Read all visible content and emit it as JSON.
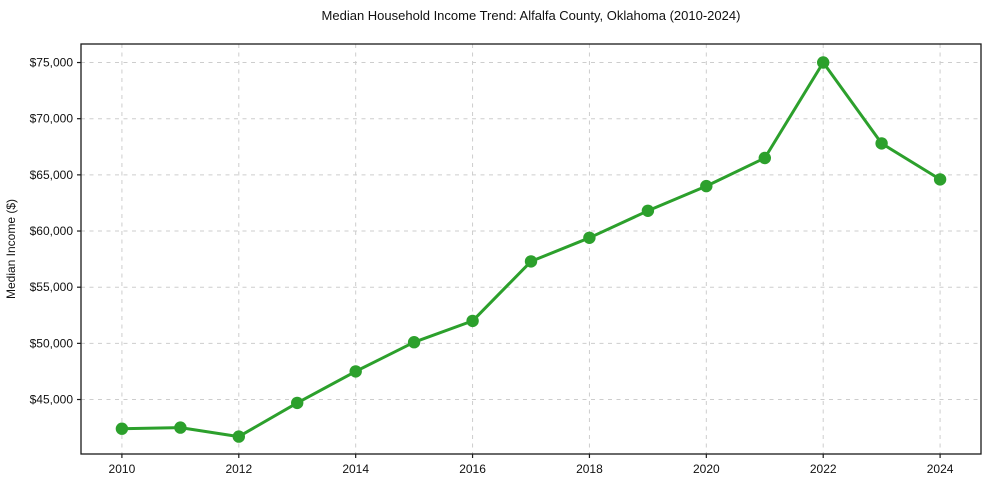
{
  "chart_data": {
    "type": "line",
    "title": "Median Household Income Trend: Alfalfa County, Oklahoma (2010-2024)",
    "xlabel": "",
    "ylabel": "Median Income ($)",
    "x": [
      2010,
      2011,
      2012,
      2013,
      2014,
      2015,
      2016,
      2017,
      2018,
      2019,
      2020,
      2021,
      2022,
      2023,
      2024
    ],
    "values": [
      42400,
      42500,
      41700,
      44700,
      47500,
      50100,
      52000,
      57300,
      59400,
      61800,
      64000,
      66500,
      75000,
      67800,
      64600
    ],
    "x_axis": {
      "ticks": [
        2010,
        2012,
        2014,
        2016,
        2018,
        2020,
        2022,
        2024
      ],
      "tick_labels": [
        "2010",
        "2012",
        "2014",
        "2016",
        "2018",
        "2020",
        "2022",
        "2024"
      ],
      "lim": [
        2009.3,
        2024.7
      ]
    },
    "y_axis": {
      "ticks": [
        45000,
        50000,
        55000,
        60000,
        65000,
        70000,
        75000
      ],
      "tick_labels": [
        "$45,000",
        "$50,000",
        "$55,000",
        "$60,000",
        "$65,000",
        "$70,000",
        "$75,000"
      ],
      "lim": [
        40150,
        76650
      ]
    },
    "grid": true,
    "grid_style": "dashed",
    "legend": "none",
    "colors": {
      "line": "#2ca02c",
      "marker": "#2ca02c",
      "grid": "#cdcdcd",
      "spine": "#1a1a1a",
      "background": "#ffffff"
    }
  }
}
